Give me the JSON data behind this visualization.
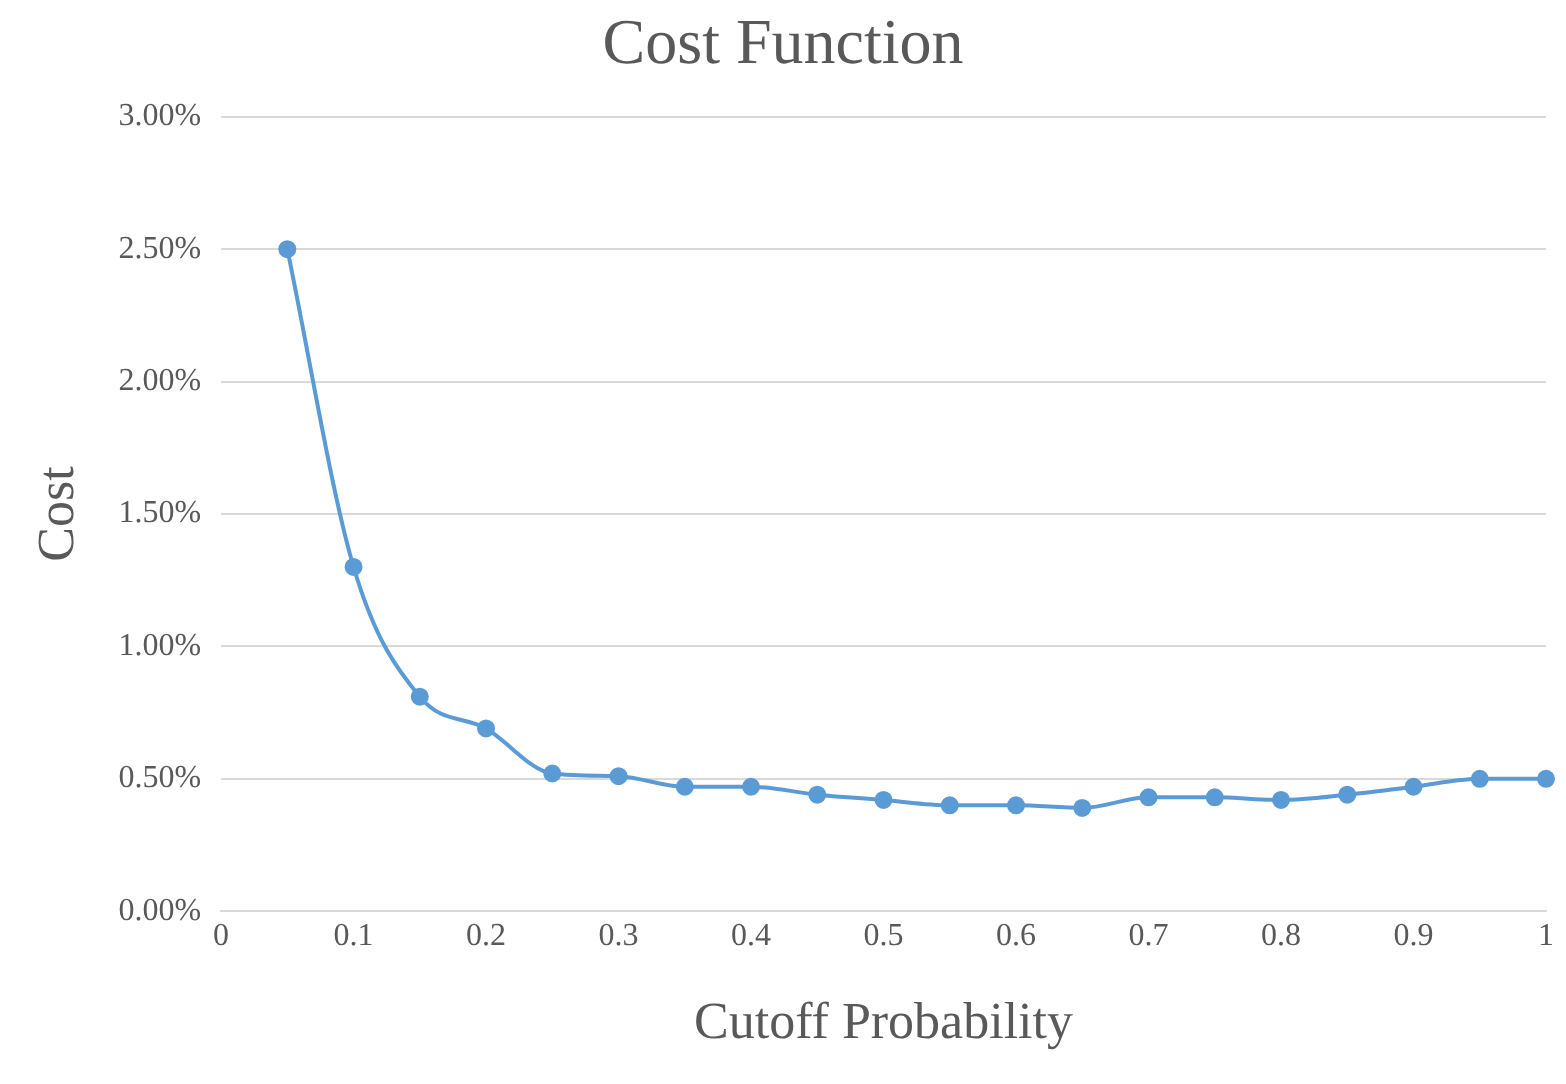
{
  "chart_data": {
    "type": "line",
    "title": "Cost Function",
    "xlabel": "Cutoff Probability",
    "ylabel": "Cost",
    "x": [
      0.05,
      0.1,
      0.15,
      0.2,
      0.25,
      0.3,
      0.35,
      0.4,
      0.45,
      0.5,
      0.55,
      0.6,
      0.65,
      0.7,
      0.75,
      0.8,
      0.85,
      0.9,
      0.95,
      1.0
    ],
    "series": [
      {
        "color": "#5b9bd5",
        "values": [
          2.5,
          1.3,
          0.81,
          0.69,
          0.52,
          0.51,
          0.47,
          0.47,
          0.44,
          0.42,
          0.4,
          0.4,
          0.39,
          0.43,
          0.43,
          0.42,
          0.44,
          0.47,
          0.5,
          0.5
        ]
      }
    ],
    "xlim": [
      0,
      1
    ],
    "xticks": [
      0,
      0.1,
      0.2,
      0.3,
      0.4,
      0.5,
      0.6,
      0.7,
      0.8,
      0.9,
      1
    ],
    "ylim": [
      0,
      3
    ],
    "yticks": [
      {
        "value": 0,
        "label": "0.00%"
      },
      {
        "value": 0.5,
        "label": "0.50%"
      },
      {
        "value": 1,
        "label": "1.00%"
      },
      {
        "value": 1.5,
        "label": "1.50%"
      },
      {
        "value": 2,
        "label": "2.00%"
      },
      {
        "value": 2.5,
        "label": "2.50%"
      },
      {
        "value": 3,
        "label": "3.00%"
      }
    ],
    "grid": "y",
    "legend": false,
    "marker": "circle",
    "line_style": "solid"
  }
}
